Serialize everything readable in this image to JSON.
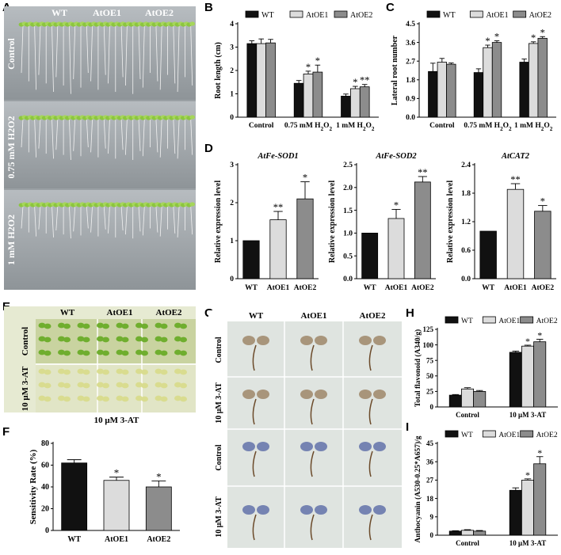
{
  "panel_letters": [
    "A",
    "B",
    "C",
    "D",
    "E",
    "F",
    "G",
    "H",
    "I"
  ],
  "colors": {
    "wt": "#111111",
    "oe1": "#dcdcdc",
    "oe2": "#8c8c8c"
  },
  "panel_a": {
    "genotypes": [
      "WT",
      "AtOE1",
      "AtOE2"
    ],
    "rows": [
      "Control",
      "0.75 mM H2O2",
      "1 mM H2O2"
    ]
  },
  "panel_e": {
    "genotypes": [
      "WT",
      "AtOE1",
      "AtOE2"
    ],
    "rows": [
      "Control",
      "10 μM 3-AT"
    ]
  },
  "panel_g": {
    "genotypes": [
      "WT",
      "AtOE1",
      "AtOE2"
    ],
    "rows": [
      "Control",
      "10 μM 3-AT",
      "Control",
      "10 μM 3-AT"
    ]
  },
  "chart_data": [
    {
      "id": "B",
      "type": "bar",
      "ylabel": "Root length (cm)",
      "ylim": [
        0,
        4
      ],
      "yticks": [
        0,
        1,
        2,
        3,
        4
      ],
      "tickdec": 0,
      "categories": [
        "Control",
        "0.75 mM H2O2",
        "1 mM H2O2"
      ],
      "legend": [
        "WT",
        "AtOE1",
        "AtOE2"
      ],
      "legend_pos": "top",
      "series": [
        {
          "name": "WT",
          "values": [
            3.15,
            1.45,
            0.9
          ],
          "err": [
            0.12,
            0.12,
            0.09
          ],
          "sig": [
            "",
            "",
            ""
          ]
        },
        {
          "name": "AtOE1",
          "values": [
            3.15,
            1.85,
            1.22
          ],
          "err": [
            0.2,
            0.12,
            0.1
          ],
          "sig": [
            "",
            "*",
            "*"
          ]
        },
        {
          "name": "AtOE2",
          "values": [
            3.18,
            1.93,
            1.3
          ],
          "err": [
            0.15,
            0.3,
            0.1
          ],
          "sig": [
            "",
            "*",
            "**"
          ]
        }
      ]
    },
    {
      "id": "C",
      "type": "bar",
      "ylabel": "Lateral root number",
      "ylim": [
        0,
        4.5
      ],
      "yticks": [
        0,
        0.9,
        1.8,
        2.7,
        3.6,
        4.5
      ],
      "tickdec": 1,
      "categories": [
        "Control",
        "0.75 mM H2O2",
        "1 mM H2O2"
      ],
      "legend": [
        "WT",
        "AtOE1",
        "AtOE2"
      ],
      "legend_pos": "top",
      "series": [
        {
          "name": "WT",
          "values": [
            2.2,
            2.15,
            2.65
          ],
          "err": [
            0.4,
            0.18,
            0.15
          ],
          "sig": [
            "",
            "",
            ""
          ]
        },
        {
          "name": "AtOE1",
          "values": [
            2.65,
            3.35,
            3.55
          ],
          "err": [
            0.18,
            0.12,
            0.08
          ],
          "sig": [
            "",
            "*",
            "*"
          ]
        },
        {
          "name": "AtOE2",
          "values": [
            2.55,
            3.6,
            3.8
          ],
          "err": [
            0.06,
            0.08,
            0.08
          ],
          "sig": [
            "",
            "*",
            "*"
          ]
        }
      ]
    },
    {
      "id": "D1",
      "type": "bar",
      "title": "AtFe-SOD1",
      "ylabel": "Relative expression level",
      "ylim": [
        0,
        3
      ],
      "yticks": [
        0,
        1,
        2,
        3
      ],
      "tickdec": 0,
      "categories": [
        "WT",
        "AtOE1",
        "AtOE2"
      ],
      "values": [
        1.0,
        1.55,
        2.1
      ],
      "err": [
        0,
        0.22,
        0.45
      ],
      "sig": [
        "",
        "**",
        "*"
      ]
    },
    {
      "id": "D2",
      "type": "bar",
      "title": "AtFe-SOD2",
      "ylabel": "Relative expression level",
      "ylim": [
        0,
        2.5
      ],
      "yticks": [
        0,
        0.5,
        1.0,
        1.5,
        2.0,
        2.5
      ],
      "tickdec": 1,
      "categories": [
        "WT",
        "AtOE1",
        "AtOE2"
      ],
      "values": [
        1.0,
        1.32,
        2.12
      ],
      "err": [
        0,
        0.2,
        0.12
      ],
      "sig": [
        "",
        "*",
        "**"
      ]
    },
    {
      "id": "D3",
      "type": "bar",
      "title": "AtCAT2",
      "ylabel": "Relative expression level",
      "ylim": [
        0,
        2.4
      ],
      "yticks": [
        0,
        0.6,
        1.2,
        1.8,
        2.4
      ],
      "tickdec": 1,
      "categories": [
        "WT",
        "AtOE1",
        "AtOE2"
      ],
      "values": [
        1.0,
        1.88,
        1.42
      ],
      "err": [
        0,
        0.12,
        0.12
      ],
      "sig": [
        "",
        "**",
        "*"
      ]
    },
    {
      "id": "F",
      "type": "bar",
      "title": "10 μM 3-AT",
      "ylabel": "Sensitivity Rate (%)",
      "ylim": [
        0,
        80
      ],
      "yticks": [
        0,
        20,
        40,
        60,
        80
      ],
      "tickdec": 0,
      "categories": [
        "WT",
        "AtOE1",
        "AtOE2"
      ],
      "values": [
        62,
        46,
        40
      ],
      "err": [
        3,
        3,
        5.5
      ],
      "sig": [
        "",
        "*",
        "*"
      ]
    },
    {
      "id": "H",
      "type": "bar",
      "ylabel": "Total flavonoid (A340/g)",
      "ylim": [
        0,
        125
      ],
      "yticks": [
        0,
        25,
        50,
        75,
        100,
        125
      ],
      "tickdec": 0,
      "categories": [
        "Control",
        "10 μM 3-AT"
      ],
      "legend": [
        "WT",
        "AtOE1",
        "AtOE2"
      ],
      "legend_pos": "top",
      "series": [
        {
          "name": "WT",
          "values": [
            19,
            88
          ],
          "err": [
            1,
            2
          ],
          "sig": [
            "",
            ""
          ]
        },
        {
          "name": "AtOE1",
          "values": [
            29,
            98
          ],
          "err": [
            2,
            1.5
          ],
          "sig": [
            "",
            "*"
          ]
        },
        {
          "name": "AtOE2",
          "values": [
            25,
            105
          ],
          "err": [
            1.5,
            4
          ],
          "sig": [
            "",
            "*"
          ]
        }
      ]
    },
    {
      "id": "I",
      "type": "bar",
      "ylabel": "Anthocyanin (A530-0.25*A657)/g",
      "ylim": [
        0,
        45
      ],
      "yticks": [
        0,
        9,
        18,
        27,
        36,
        45
      ],
      "tickdec": 0,
      "categories": [
        "Control",
        "10 μM 3-AT"
      ],
      "legend": [
        "WT",
        "AtOE1",
        "AtOE2"
      ],
      "legend_pos": "top",
      "series": [
        {
          "name": "WT",
          "values": [
            2,
            22
          ],
          "err": [
            0.2,
            1.2
          ],
          "sig": [
            "",
            ""
          ]
        },
        {
          "name": "AtOE1",
          "values": [
            2.4,
            27
          ],
          "err": [
            0.3,
            0.6
          ],
          "sig": [
            "",
            "*"
          ]
        },
        {
          "name": "AtOE2",
          "values": [
            2,
            35
          ],
          "err": [
            0.3,
            3.5
          ],
          "sig": [
            "",
            "*"
          ]
        }
      ]
    }
  ]
}
